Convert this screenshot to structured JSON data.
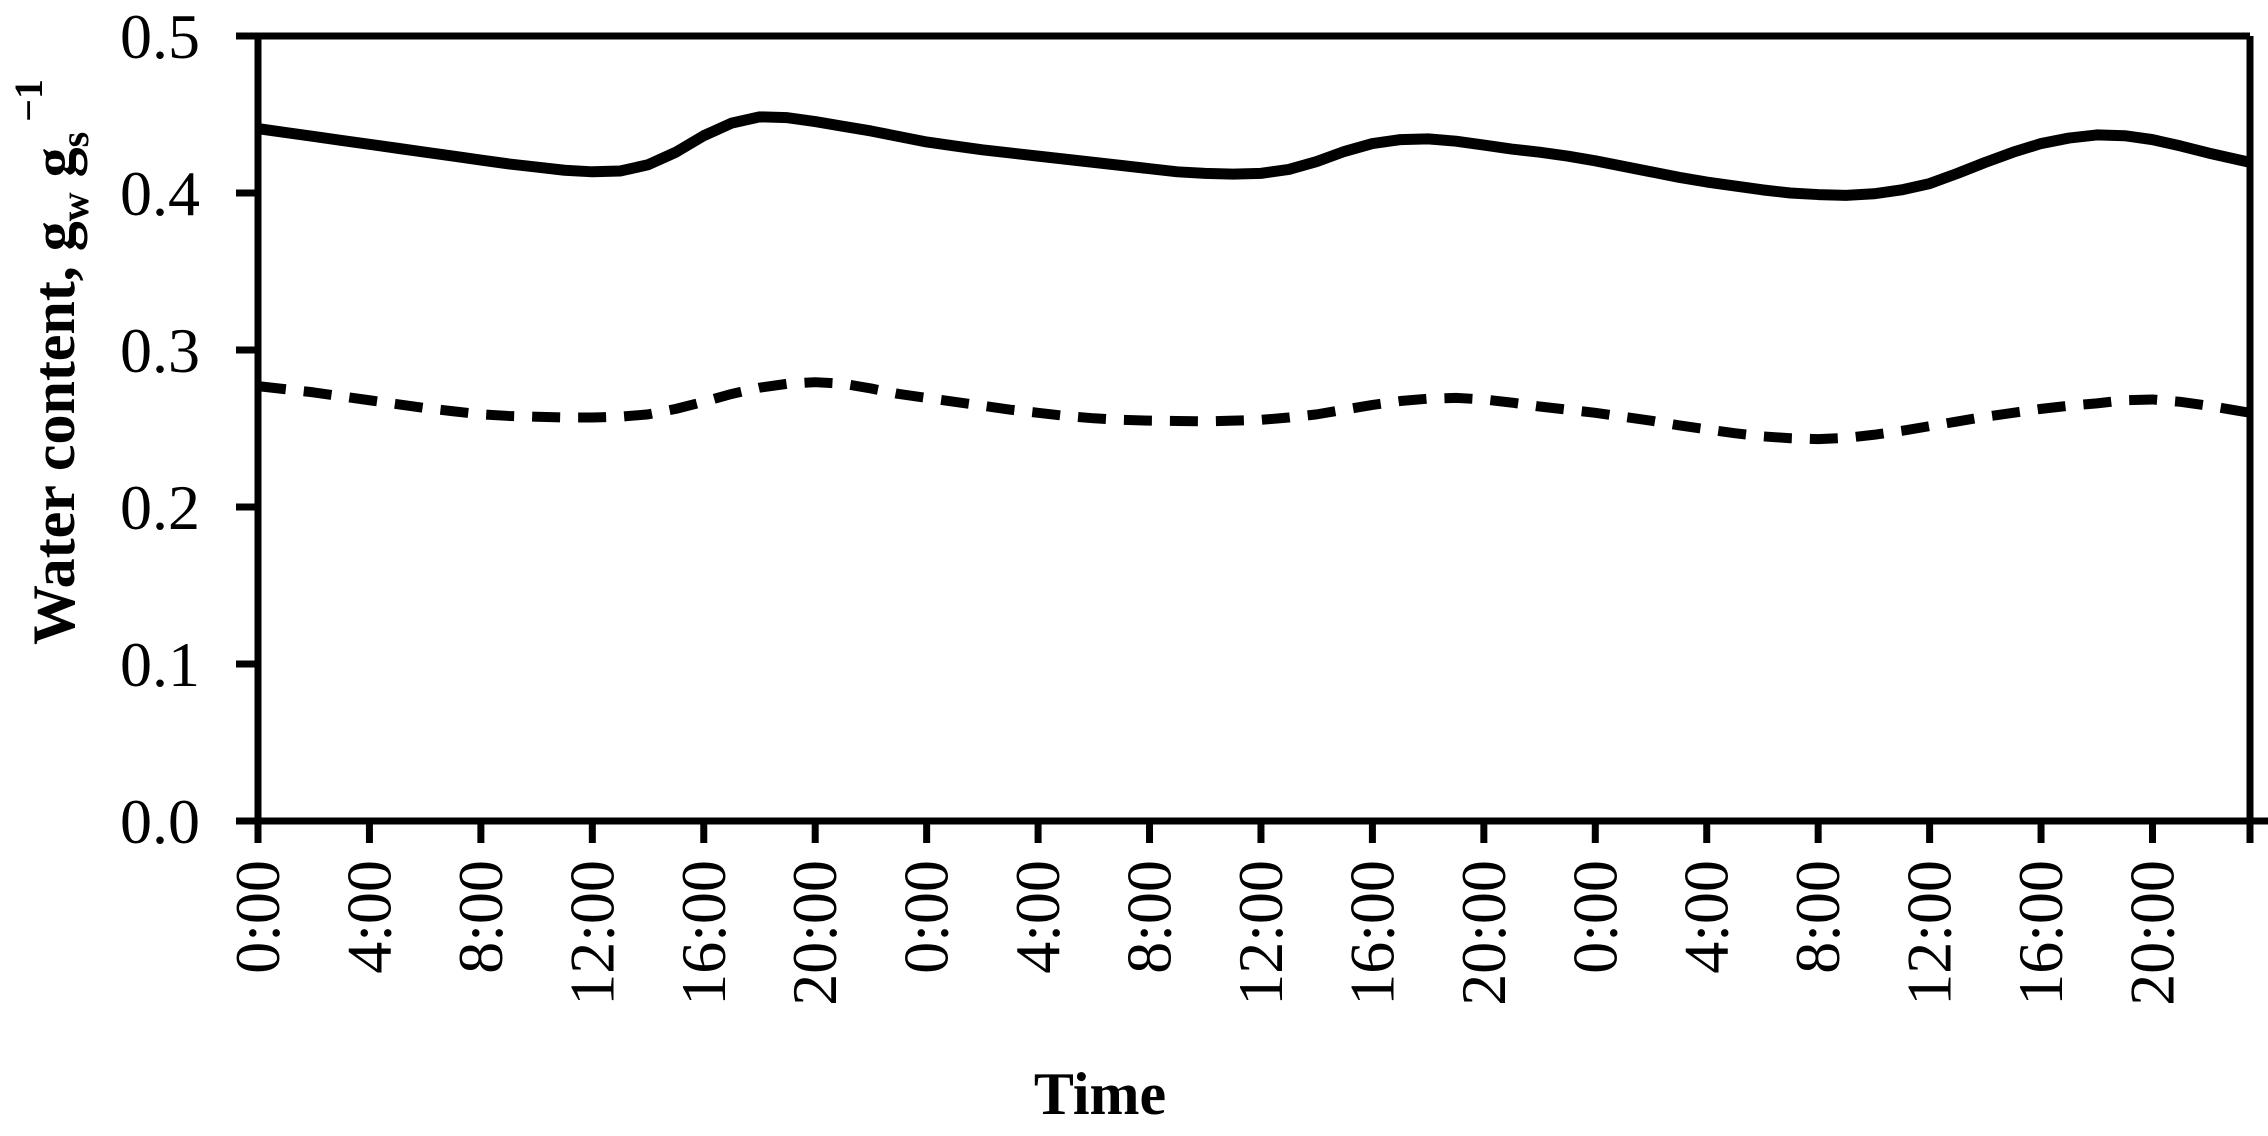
{
  "figure": {
    "background": "#ffffff",
    "ink_color": "#000000"
  },
  "chart_data": {
    "type": "line",
    "title": "",
    "xlabel": "Time",
    "ylabel": "Water content, gw gs -1",
    "ylabel_rich": [
      {
        "text": "Water content, g",
        "script": "normal"
      },
      {
        "text": "w",
        "script": "sub"
      },
      {
        "text": " g",
        "script": "normal"
      },
      {
        "text": "s",
        "script": "sub"
      },
      {
        "text": " −1",
        "script": "super"
      }
    ],
    "x_unit": "hours from first midnight",
    "xlim_hours": [
      0,
      71.5
    ],
    "ylim": [
      0.0,
      0.5
    ],
    "grid": false,
    "legend_position": "none",
    "frame": "full-box",
    "x_tick_interval_hours": 4,
    "x_tick_label_rotation_deg": -90,
    "x_ticks": [
      {
        "hour": 0,
        "label": "0:00"
      },
      {
        "hour": 4,
        "label": "4:00"
      },
      {
        "hour": 8,
        "label": "8:00"
      },
      {
        "hour": 12,
        "label": "12:00"
      },
      {
        "hour": 16,
        "label": "16:00"
      },
      {
        "hour": 20,
        "label": "20:00"
      },
      {
        "hour": 24,
        "label": "0:00"
      },
      {
        "hour": 28,
        "label": "4:00"
      },
      {
        "hour": 32,
        "label": "8:00"
      },
      {
        "hour": 36,
        "label": "12:00"
      },
      {
        "hour": 40,
        "label": "16:00"
      },
      {
        "hour": 44,
        "label": "20:00"
      },
      {
        "hour": 48,
        "label": "0:00"
      },
      {
        "hour": 52,
        "label": "4:00"
      },
      {
        "hour": 56,
        "label": "8:00"
      },
      {
        "hour": 60,
        "label": "12:00"
      },
      {
        "hour": 64,
        "label": "16:00"
      },
      {
        "hour": 68,
        "label": "20:00"
      }
    ],
    "y_ticks": [
      {
        "value": 0.0,
        "label": "0.0"
      },
      {
        "value": 0.1,
        "label": "0.1"
      },
      {
        "value": 0.2,
        "label": "0.2"
      },
      {
        "value": 0.3,
        "label": "0.3"
      },
      {
        "value": 0.4,
        "label": "0.4"
      },
      {
        "value": 0.5,
        "label": "0.5"
      }
    ],
    "x_hours": [
      0,
      1,
      2,
      3,
      4,
      5,
      6,
      7,
      8,
      9,
      10,
      11,
      12,
      13,
      14,
      15,
      16,
      17,
      18,
      19,
      20,
      21,
      22,
      23,
      24,
      25,
      26,
      27,
      28,
      29,
      30,
      31,
      32,
      33,
      34,
      35,
      36,
      37,
      38,
      39,
      40,
      41,
      42,
      43,
      44,
      45,
      46,
      47,
      48,
      49,
      50,
      51,
      52,
      53,
      54,
      55,
      56,
      57,
      58,
      59,
      60,
      61,
      62,
      63,
      64,
      65,
      66,
      67,
      68,
      69,
      70,
      71,
      71.5
    ],
    "series": [
      {
        "name": "upper solid line",
        "line_style": "solid",
        "color": "#000000",
        "values": [
          0.441,
          0.4385,
          0.436,
          0.4335,
          0.431,
          0.4285,
          0.426,
          0.4235,
          0.421,
          0.4185,
          0.4165,
          0.4145,
          0.4135,
          0.414,
          0.418,
          0.426,
          0.4365,
          0.4445,
          0.4485,
          0.448,
          0.4455,
          0.4425,
          0.4395,
          0.436,
          0.4325,
          0.43,
          0.4275,
          0.4255,
          0.4235,
          0.4215,
          0.4195,
          0.4175,
          0.4155,
          0.4135,
          0.4125,
          0.412,
          0.4125,
          0.415,
          0.42,
          0.4265,
          0.4315,
          0.434,
          0.4345,
          0.433,
          0.4305,
          0.428,
          0.426,
          0.4235,
          0.4205,
          0.417,
          0.4135,
          0.41,
          0.407,
          0.4045,
          0.402,
          0.4,
          0.399,
          0.3985,
          0.3995,
          0.402,
          0.406,
          0.4125,
          0.4195,
          0.426,
          0.4315,
          0.435,
          0.437,
          0.4365,
          0.434,
          0.43,
          0.4255,
          0.4215,
          0.4195
        ]
      },
      {
        "name": "lower dashed line",
        "line_style": "dashed",
        "color": "#000000",
        "values": [
          0.277,
          0.275,
          0.273,
          0.2705,
          0.268,
          0.2655,
          0.263,
          0.261,
          0.259,
          0.258,
          0.2575,
          0.257,
          0.257,
          0.2575,
          0.259,
          0.2625,
          0.267,
          0.272,
          0.276,
          0.2785,
          0.2795,
          0.2785,
          0.2755,
          0.272,
          0.2695,
          0.267,
          0.2645,
          0.262,
          0.26,
          0.258,
          0.2565,
          0.2555,
          0.255,
          0.2548,
          0.2545,
          0.255,
          0.2555,
          0.257,
          0.259,
          0.262,
          0.265,
          0.2675,
          0.269,
          0.2695,
          0.2685,
          0.2665,
          0.264,
          0.262,
          0.26,
          0.2575,
          0.255,
          0.252,
          0.2495,
          0.247,
          0.245,
          0.2438,
          0.2432,
          0.244,
          0.246,
          0.2485,
          0.2515,
          0.2545,
          0.2575,
          0.26,
          0.2625,
          0.2645,
          0.266,
          0.268,
          0.2685,
          0.267,
          0.2645,
          0.2615,
          0.26
        ]
      }
    ]
  }
}
